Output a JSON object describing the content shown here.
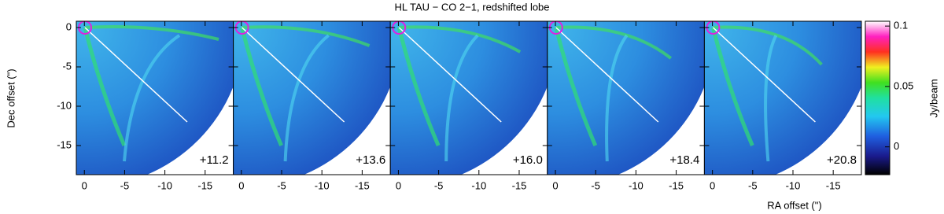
{
  "chart_data": {
    "type": "image",
    "title": "HL TAU − CO 2−1, redshifted lobe",
    "xlabel": "RA offset (\")",
    "ylabel": "Dec offset (\")",
    "xlim": [
      1,
      -18.5
    ],
    "ylim": [
      -18.7,
      0.8
    ],
    "xticks": [
      0,
      -5,
      -10,
      -15
    ],
    "yticks": [
      0,
      -5,
      -10,
      -15
    ],
    "panels": [
      {
        "label": "+11.2"
      },
      {
        "label": "+13.6"
      },
      {
        "label": "+16.0"
      },
      {
        "label": "+18.4"
      },
      {
        "label": "+20.8"
      }
    ],
    "colorbar": {
      "label": "Jy/beam",
      "lim": [
        -0.023,
        0.104
      ],
      "ticks": [
        0.1,
        0.05,
        0
      ]
    }
  }
}
